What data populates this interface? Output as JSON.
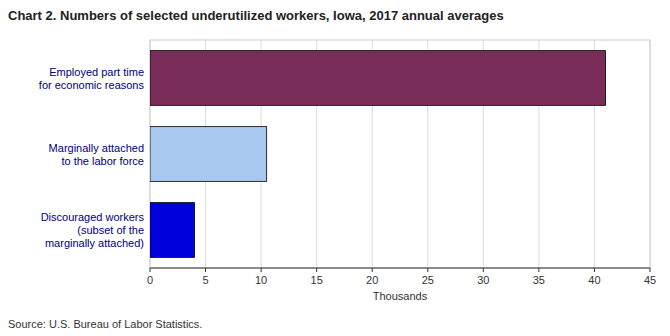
{
  "chart_data": {
    "type": "bar",
    "orientation": "horizontal",
    "title": "Chart 2. Numbers of selected underutilized workers, Iowa, 2017 annual averages",
    "categories": [
      "Discouraged workers\n(subset of the\nmarginally attached)",
      "Marginally attached\nto the labor force",
      "Employed part time\nfor economic reasons"
    ],
    "values": [
      4.0,
      10.5,
      41.0
    ],
    "colors": [
      "#0000dd",
      "#a8c8f0",
      "#7b2d5a"
    ],
    "xlabel": "Thousands",
    "xlim": [
      0,
      45
    ],
    "xticks": [
      0,
      5,
      10,
      15,
      20,
      25,
      30,
      35,
      40,
      45
    ],
    "grid": true,
    "annotations": [
      "Source: U.S. Bureau of Labor Statistics."
    ]
  }
}
